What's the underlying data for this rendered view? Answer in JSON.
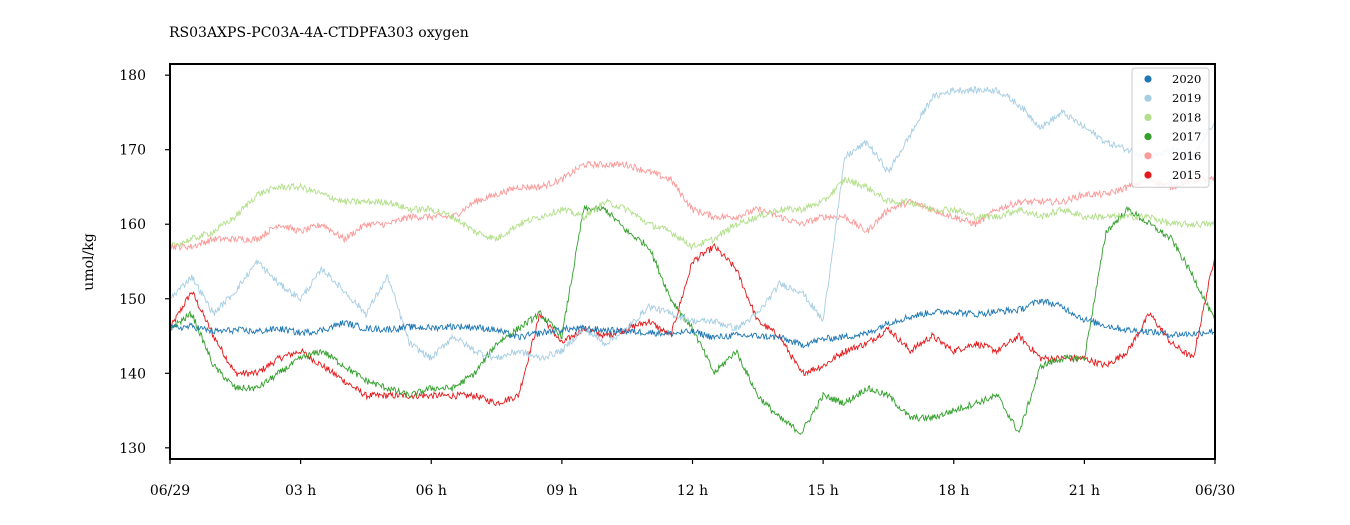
{
  "chart_data": {
    "type": "line",
    "title": "RS03AXPS-PC03A-4A-CTDPFA303 oxygen",
    "xlabel": "",
    "ylabel": "umol/kg",
    "xlim": [
      0,
      24
    ],
    "ylim": [
      128.5,
      181.5
    ],
    "x_ticks": [
      {
        "value": 0,
        "label": "06/29"
      },
      {
        "value": 3,
        "label": "03 h"
      },
      {
        "value": 6,
        "label": "06 h"
      },
      {
        "value": 9,
        "label": "09 h"
      },
      {
        "value": 12,
        "label": "12 h"
      },
      {
        "value": 15,
        "label": "15 h"
      },
      {
        "value": 18,
        "label": "18 h"
      },
      {
        "value": 21,
        "label": "21 h"
      },
      {
        "value": 24,
        "label": "06/30"
      }
    ],
    "y_ticks": [
      {
        "value": 130,
        "label": "130"
      },
      {
        "value": 140,
        "label": "140"
      },
      {
        "value": 150,
        "label": "150"
      },
      {
        "value": 160,
        "label": "160"
      },
      {
        "value": 170,
        "label": "170"
      },
      {
        "value": 180,
        "label": "180"
      }
    ],
    "grid": false,
    "legend_position": "top-right",
    "series": [
      {
        "name": "2020",
        "color": "#1f78b4",
        "x": [
          0,
          0.5,
          1,
          1.5,
          2,
          2.5,
          3,
          3.5,
          4,
          4.5,
          5,
          5.5,
          6,
          6.5,
          7,
          7.5,
          8,
          8.5,
          9,
          9.5,
          10,
          10.5,
          11,
          11.5,
          12,
          12.5,
          13,
          13.5,
          14,
          14.5,
          15,
          15.5,
          16,
          16.5,
          17,
          17.5,
          18,
          18.5,
          19,
          19.5,
          20,
          20.5,
          21,
          21.5,
          22,
          22.5,
          23,
          23.5,
          24
        ],
        "values": [
          146,
          146.3,
          145.6,
          145.8,
          145.6,
          146,
          145.4,
          145.8,
          146.8,
          146,
          145.9,
          146.2,
          146.1,
          146.3,
          146.2,
          145.8,
          144.8,
          145.4,
          145.9,
          146,
          145.8,
          145.6,
          145.5,
          145.3,
          145.6,
          144.8,
          145.1,
          145,
          144.8,
          143.8,
          144.6,
          144.9,
          145.3,
          146.8,
          147.6,
          148.2,
          148.3,
          147.9,
          148.3,
          148.5,
          149.8,
          148.9,
          147.2,
          146.4,
          145.8,
          145.6,
          145.2,
          145.3,
          145.7
        ]
      },
      {
        "name": "2019",
        "color": "#a6cee3",
        "x": [
          0,
          0.5,
          1,
          1.5,
          2,
          2.5,
          3,
          3.5,
          4,
          4.5,
          5,
          5.5,
          6,
          6.5,
          7,
          7.5,
          8,
          8.5,
          9,
          9.5,
          10,
          10.5,
          11,
          11.5,
          12,
          12.5,
          13,
          13.5,
          14,
          14.5,
          15,
          15.5,
          16,
          16.5,
          17,
          17.5,
          18,
          18.5,
          19,
          19.5,
          20,
          20.5,
          21,
          21.5,
          22,
          22.5,
          23,
          23.5,
          24
        ],
        "values": [
          150,
          153,
          148,
          151,
          155,
          152,
          150,
          154,
          151,
          148,
          153,
          144,
          142,
          145,
          143,
          142,
          143,
          142,
          143,
          146,
          144,
          146,
          149,
          148,
          147,
          147,
          146,
          148,
          152,
          151,
          147,
          169,
          171,
          167,
          172,
          177,
          178,
          178,
          178,
          176,
          173,
          175,
          173,
          171,
          170,
          169,
          170,
          169,
          174
        ]
      },
      {
        "name": "2018",
        "color": "#b2df8a",
        "x": [
          0,
          0.5,
          1,
          1.5,
          2,
          2.5,
          3,
          3.5,
          4,
          4.5,
          5,
          5.5,
          6,
          6.5,
          7,
          7.5,
          8,
          8.5,
          9,
          9.5,
          10,
          10.5,
          11,
          11.5,
          12,
          12.5,
          13,
          13.5,
          14,
          14.5,
          15,
          15.5,
          16,
          16.5,
          17,
          17.5,
          18,
          18.5,
          19,
          19.5,
          20,
          20.5,
          21,
          21.5,
          22,
          22.5,
          23,
          23.5,
          24
        ],
        "values": [
          157,
          158,
          159,
          161,
          164,
          165,
          165,
          164,
          163,
          163,
          163,
          162,
          162,
          161,
          159,
          158,
          160,
          161,
          162,
          161,
          163,
          162,
          160,
          159,
          157,
          158,
          160,
          161,
          162,
          162,
          163,
          166,
          165,
          163,
          163,
          162,
          162,
          161,
          161,
          162,
          161,
          162,
          161,
          161,
          161,
          161,
          160,
          160,
          160
        ]
      },
      {
        "name": "2017",
        "color": "#33a02c",
        "x": [
          0,
          0.5,
          1,
          1.5,
          2,
          2.5,
          3,
          3.5,
          4,
          4.5,
          5,
          5.5,
          6,
          6.5,
          7,
          7.5,
          8,
          8.5,
          9,
          9.5,
          10,
          10.5,
          11,
          11.5,
          12,
          12.5,
          13,
          13.5,
          14,
          14.5,
          15,
          15.5,
          16,
          16.5,
          17,
          17.5,
          18,
          18.5,
          19,
          19.5,
          20,
          20.5,
          21,
          21.5,
          22,
          22.5,
          23,
          23.5,
          24
        ],
        "values": [
          146,
          148,
          141,
          138,
          138,
          140,
          142,
          143,
          141,
          139,
          138,
          137,
          138,
          138,
          140,
          144,
          146,
          148,
          145,
          162,
          162,
          159,
          157,
          150,
          146,
          140,
          143,
          137,
          134,
          132,
          137,
          136,
          138,
          137,
          134,
          134,
          135,
          136,
          137,
          132,
          141,
          142,
          142,
          159,
          162,
          160,
          158,
          153,
          147
        ]
      },
      {
        "name": "2016",
        "color": "#fb9a99",
        "x": [
          0,
          0.5,
          1,
          1.5,
          2,
          2.5,
          3,
          3.5,
          4,
          4.5,
          5,
          5.5,
          6,
          6.5,
          7,
          7.5,
          8,
          8.5,
          9,
          9.5,
          10,
          10.5,
          11,
          11.5,
          12,
          12.5,
          13,
          13.5,
          14,
          14.5,
          15,
          15.5,
          16,
          16.5,
          17,
          17.5,
          18,
          18.5,
          19,
          19.5,
          20,
          20.5,
          21,
          21.5,
          22,
          22.5,
          23,
          23.5,
          24
        ],
        "values": [
          157,
          157,
          158,
          158,
          158,
          160,
          159,
          160,
          158,
          160,
          160,
          161,
          161,
          161,
          163,
          164,
          165,
          165,
          166,
          168,
          168,
          168,
          167,
          166,
          162,
          161,
          161,
          162,
          161,
          160,
          161,
          161,
          159,
          162,
          163,
          162,
          161,
          160,
          162,
          163,
          163,
          163,
          164,
          164,
          165,
          166,
          165,
          166,
          166
        ]
      },
      {
        "name": "2015",
        "color": "#e31a1c",
        "x": [
          0,
          0.5,
          1,
          1.5,
          2,
          2.5,
          3,
          3.5,
          4,
          4.5,
          5,
          5.5,
          6,
          6.5,
          7,
          7.5,
          8,
          8.5,
          9,
          9.5,
          10,
          10.5,
          11,
          11.5,
          12,
          12.5,
          13,
          13.5,
          14,
          14.5,
          15,
          15.5,
          16,
          16.5,
          17,
          17.5,
          18,
          18.5,
          19,
          19.5,
          20,
          20.5,
          21,
          21.5,
          22,
          22.5,
          23,
          23.5,
          24
        ],
        "values": [
          146,
          151,
          145,
          140,
          140,
          142,
          143,
          141,
          139,
          137,
          137,
          137,
          137,
          137,
          137,
          136,
          137,
          148,
          144,
          146,
          145,
          146,
          147,
          145,
          155,
          157,
          154,
          147,
          145,
          140,
          141,
          143,
          144,
          146,
          143,
          145,
          143,
          144,
          143,
          145,
          142,
          142,
          142,
          141,
          143,
          148,
          144,
          142,
          156
        ]
      }
    ]
  }
}
